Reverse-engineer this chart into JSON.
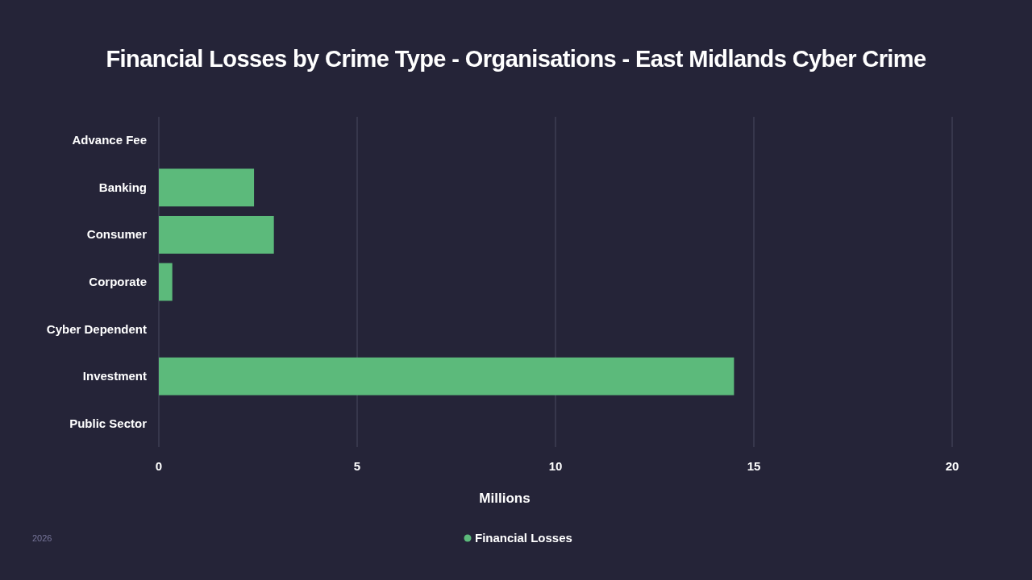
{
  "chart_data": {
    "type": "bar",
    "title": "Financial Losses by Crime Type - Organisations - East Midlands Cyber Crime",
    "xlabel": "Millions",
    "orientation": "horizontal",
    "categories": [
      "Advance Fee",
      "Banking",
      "Consumer",
      "Corporate",
      "Cyber Dependent",
      "Investment",
      "Public Sector"
    ],
    "series": [
      {
        "name": "Financial Losses",
        "color": "#5cba7b",
        "values": [
          0,
          2.4,
          2.9,
          0.34,
          0,
          14.5,
          0
        ]
      }
    ],
    "xlim": [
      0,
      20
    ],
    "xticks": [
      0,
      5,
      10,
      15,
      20
    ],
    "grid": "x",
    "legend": "bottom",
    "annotations": [
      "2026"
    ]
  }
}
